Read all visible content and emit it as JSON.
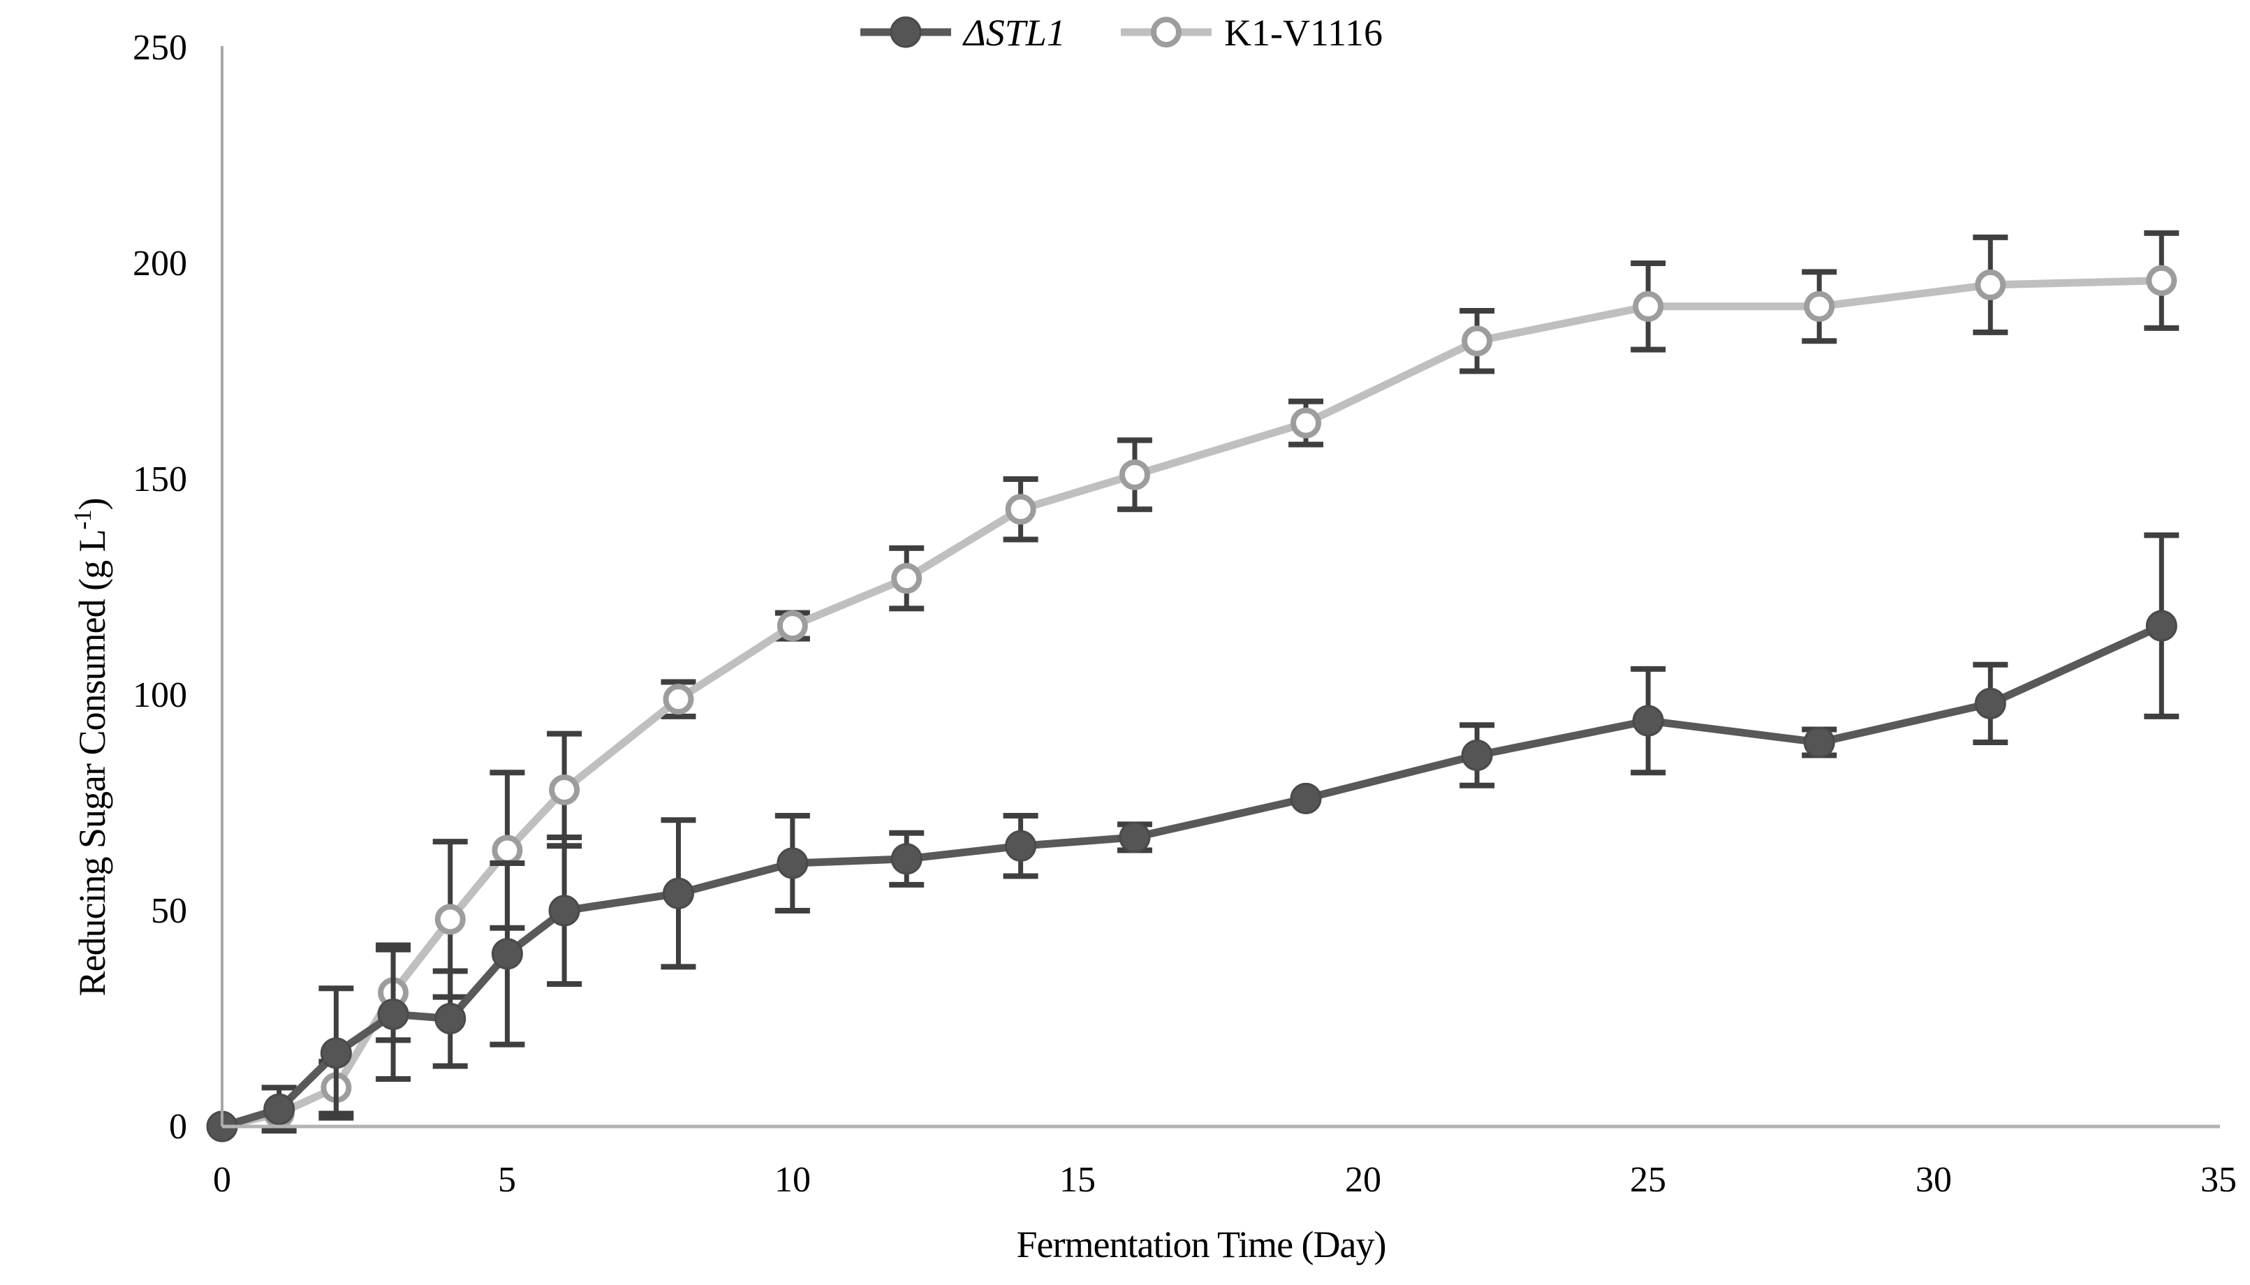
{
  "chart_data": {
    "type": "line",
    "title": "",
    "xlabel": "Fermentation Time (Day)",
    "ylabel": "Reducing Sugar Consumed (g L-1)",
    "ylabel_pre": "Reducing Sugar Consumed (g L",
    "ylabel_sup": "-1",
    "ylabel_post": ")",
    "x": [
      0,
      1,
      2,
      3,
      4,
      5,
      6,
      8,
      10,
      12,
      14,
      16,
      19,
      22,
      25,
      28,
      31,
      34
    ],
    "xlim": [
      0,
      35
    ],
    "ylim": [
      0,
      250
    ],
    "xticks": [
      0,
      5,
      10,
      15,
      20,
      25,
      30,
      35
    ],
    "yticks": [
      0,
      50,
      100,
      150,
      200,
      250
    ],
    "xtick_labels": [
      "0",
      "5",
      "10",
      "15",
      "20",
      "25",
      "30",
      "35"
    ],
    "ytick_labels": [
      "0",
      "50",
      "100",
      "150",
      "200",
      "250"
    ],
    "grid": false,
    "legend_position": "top-center",
    "series": [
      {
        "name": "ΔSTL1",
        "italic": true,
        "marker": "filled-circle",
        "line_color": "#595959",
        "marker_fill": "#555555",
        "marker_stroke": "#4a4a4a",
        "values": [
          0,
          4,
          17,
          26,
          25,
          40,
          50,
          54,
          61,
          62,
          65,
          67,
          76,
          86,
          94,
          89,
          98,
          116
        ],
        "errors": [
          0,
          5,
          15,
          15,
          11,
          21,
          17,
          17,
          11,
          6,
          7,
          3,
          0,
          7,
          12,
          3,
          9,
          21
        ]
      },
      {
        "name": "K1-V1116",
        "italic": false,
        "marker": "open-circle",
        "line_color": "#bfbfbf",
        "marker_fill": "#ffffff",
        "marker_stroke": "#9d9d9d",
        "values": [
          0,
          3,
          9,
          31,
          48,
          64,
          78,
          99,
          116,
          127,
          143,
          151,
          163,
          182,
          190,
          190,
          195,
          196
        ],
        "errors": [
          0,
          0,
          6,
          11,
          18,
          18,
          13,
          4,
          3,
          7,
          7,
          8,
          5,
          7,
          10,
          8,
          11,
          11
        ]
      }
    ],
    "style": {
      "error_bar_color": "#3f3f3f",
      "axis_color": "#a8a8a8",
      "text_color": "#000000",
      "background": "#ffffff"
    }
  }
}
